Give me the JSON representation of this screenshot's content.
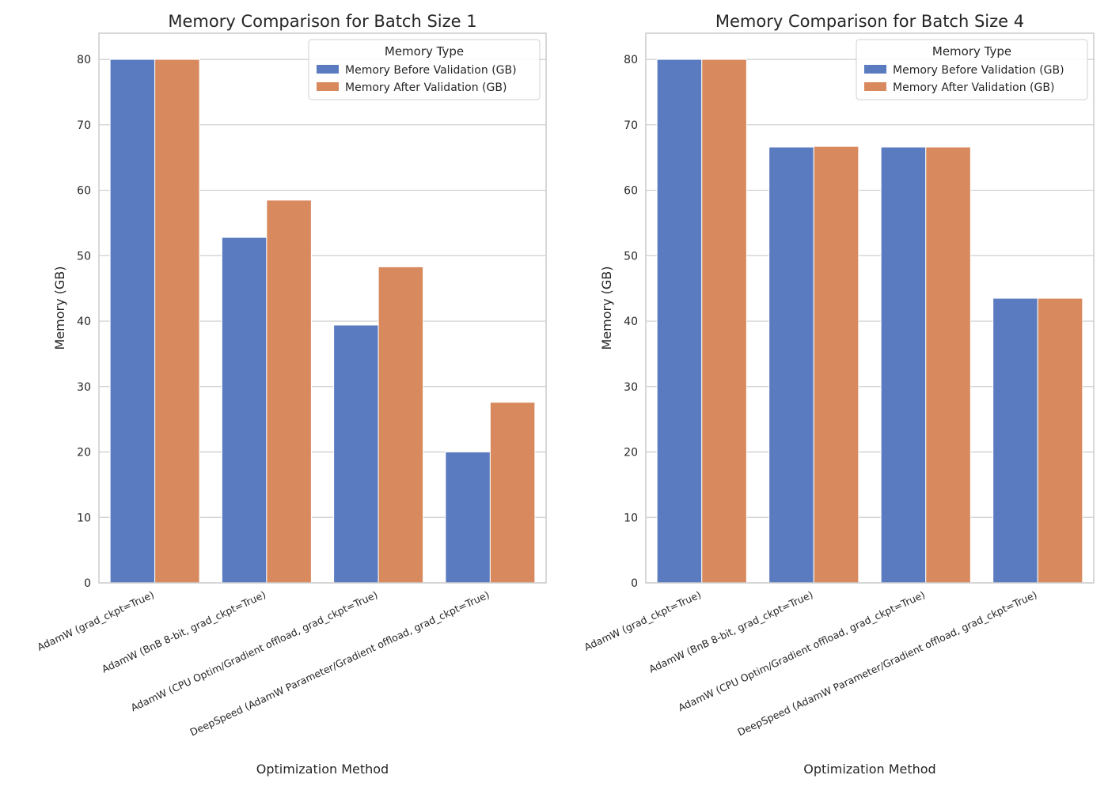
{
  "chart_data": [
    {
      "type": "bar",
      "title": "Memory Comparison for Batch Size 1",
      "xlabel": "Optimization Method",
      "ylabel": "Memory (GB)",
      "ylim": [
        0,
        84
      ],
      "yticks": [
        0,
        10,
        20,
        30,
        40,
        50,
        60,
        70,
        80
      ],
      "grid": "horizontal",
      "legend": {
        "title": "Memory Type",
        "placement": "top-right"
      },
      "categories": [
        "AdamW (grad_ckpt=True)",
        "AdamW (BnB 8-bit, grad_ckpt=True)",
        "AdamW (CPU Optim/Gradient offload, grad_ckpt=True)",
        "DeepSpeed (AdamW Parameter/Gradient offload, grad_ckpt=True)"
      ],
      "series": [
        {
          "name": "Memory Before Validation (GB)",
          "color": "#5a7bbf",
          "values": [
            80.0,
            52.8,
            39.4,
            20.0
          ]
        },
        {
          "name": "Memory After Validation (GB)",
          "color": "#d88a5e",
          "values": [
            80.0,
            58.5,
            48.3,
            27.6
          ]
        }
      ]
    },
    {
      "type": "bar",
      "title": "Memory Comparison for Batch Size 4",
      "xlabel": "Optimization Method",
      "ylabel": "Memory (GB)",
      "ylim": [
        0,
        84
      ],
      "yticks": [
        0,
        10,
        20,
        30,
        40,
        50,
        60,
        70,
        80
      ],
      "grid": "horizontal",
      "legend": {
        "title": "Memory Type",
        "placement": "top-right"
      },
      "categories": [
        "AdamW (grad_ckpt=True)",
        "AdamW (BnB 8-bit, grad_ckpt=True)",
        "AdamW (CPU Optim/Gradient offload, grad_ckpt=True)",
        "DeepSpeed (AdamW Parameter/Gradient offload, grad_ckpt=True)"
      ],
      "series": [
        {
          "name": "Memory Before Validation (GB)",
          "color": "#5a7bbf",
          "values": [
            80.0,
            66.6,
            66.6,
            43.5
          ]
        },
        {
          "name": "Memory After Validation (GB)",
          "color": "#d88a5e",
          "values": [
            80.0,
            66.7,
            66.6,
            43.5
          ]
        }
      ]
    }
  ]
}
